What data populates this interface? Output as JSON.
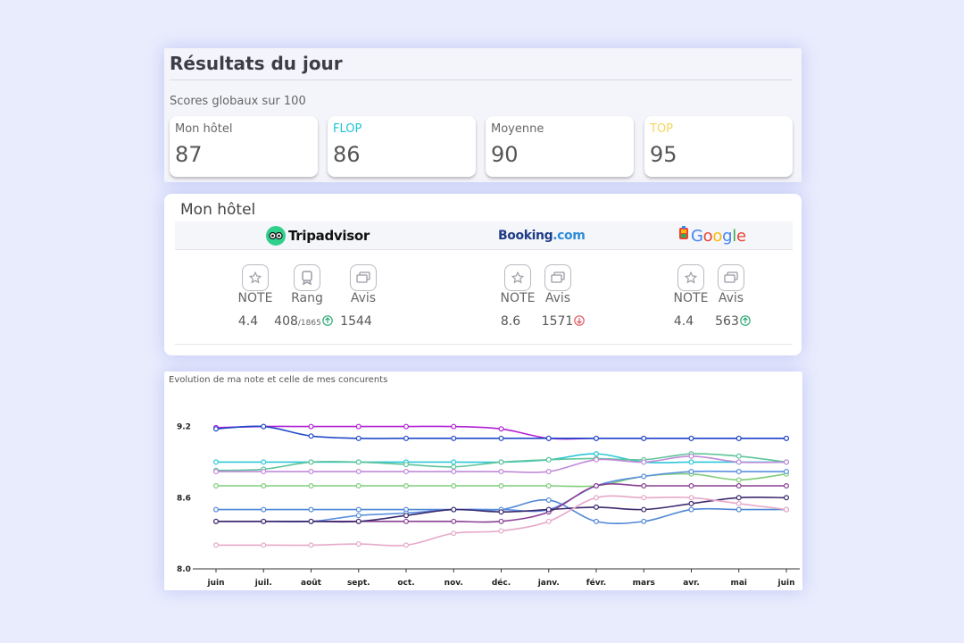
{
  "results": {
    "title": "Résultats du jour",
    "subtitle": "Scores globaux sur 100",
    "cards": [
      {
        "label": "Mon hôtel",
        "value": "87",
        "color": "#666666"
      },
      {
        "label": "FLOP",
        "value": "86",
        "color": "#1ec3d6"
      },
      {
        "label": "Moyenne",
        "value": "90",
        "color": "#666666"
      },
      {
        "label": "TOP",
        "value": "95",
        "color": "#f5d560"
      }
    ]
  },
  "hotel": {
    "title": "Mon hôtel",
    "platforms": {
      "tripadvisor": {
        "logo_text": "Tripadvisor",
        "labels": [
          "NOTE",
          "Rang",
          "Avis"
        ],
        "note": "4.4",
        "rank": "408",
        "rank_total": "/1865",
        "rank_trend": "up",
        "reviews": "1544"
      },
      "booking": {
        "logo_text_main": "Booking",
        "logo_text_dot": ".com",
        "labels": [
          "NOTE",
          "Avis"
        ],
        "note": "8.6",
        "reviews": "1571",
        "reviews_trend": "down"
      },
      "google": {
        "logo_text": "Google",
        "labels": [
          "NOTE",
          "Avis"
        ],
        "note": "4.4",
        "reviews": "563",
        "reviews_trend": "up"
      }
    },
    "colors": {
      "up": "#2aa876",
      "down": "#e05560"
    }
  },
  "chart_title": "Evolution de ma note et celle de mes concurents",
  "chart_data": {
    "type": "line",
    "x": [
      "juin",
      "juil.",
      "août",
      "sept.",
      "oct.",
      "nov.",
      "déc.",
      "janv.",
      "févr.",
      "mars",
      "avr.",
      "mai",
      "juin"
    ],
    "ylim": [
      8.0,
      9.4
    ],
    "yticks": [
      8.0,
      8.6,
      9.2
    ],
    "series": [
      {
        "color": "#b21fd4",
        "values": [
          9.19,
          9.2,
          9.2,
          9.2,
          9.2,
          9.2,
          9.18,
          9.1,
          9.1,
          9.1,
          9.1,
          9.1,
          9.1
        ]
      },
      {
        "color": "#1f49c8",
        "values": [
          9.18,
          9.2,
          9.12,
          9.1,
          9.1,
          9.1,
          9.1,
          9.1,
          9.1,
          9.1,
          9.1,
          9.1,
          9.1
        ]
      },
      {
        "color": "#2bc7d8",
        "values": [
          8.9,
          8.9,
          8.9,
          8.9,
          8.9,
          8.9,
          8.9,
          8.92,
          8.97,
          8.9,
          8.9,
          8.9,
          8.9
        ]
      },
      {
        "color": "#5ec49a",
        "values": [
          8.83,
          8.84,
          8.9,
          8.9,
          8.88,
          8.86,
          8.9,
          8.92,
          8.93,
          8.92,
          8.97,
          8.95,
          8.9
        ]
      },
      {
        "color": "#c08ad8",
        "values": [
          8.82,
          8.82,
          8.82,
          8.82,
          8.82,
          8.82,
          8.82,
          8.82,
          8.92,
          8.9,
          8.95,
          8.9,
          8.9
        ]
      },
      {
        "color": "#4f86d6",
        "values": [
          8.5,
          8.5,
          8.5,
          8.5,
          8.5,
          8.5,
          8.5,
          8.58,
          8.4,
          8.4,
          8.5,
          8.5,
          8.5
        ]
      },
      {
        "color": "#7fce7a",
        "values": [
          8.7,
          8.7,
          8.7,
          8.7,
          8.7,
          8.7,
          8.7,
          8.7,
          8.7,
          8.78,
          8.8,
          8.75,
          8.8
        ]
      },
      {
        "color": "#5a8fe0",
        "values": [
          8.4,
          8.4,
          8.4,
          8.45,
          8.47,
          8.5,
          8.5,
          8.5,
          8.7,
          8.78,
          8.82,
          8.82,
          8.82
        ]
      },
      {
        "color": "#8a3f94",
        "values": [
          8.4,
          8.4,
          8.4,
          8.4,
          8.4,
          8.4,
          8.4,
          8.48,
          8.7,
          8.7,
          8.7,
          8.7,
          8.7
        ]
      },
      {
        "color": "#3c2a6e",
        "values": [
          8.4,
          8.4,
          8.4,
          8.4,
          8.45,
          8.5,
          8.48,
          8.5,
          8.52,
          8.5,
          8.55,
          8.6,
          8.6
        ]
      },
      {
        "color": "#e6a8c8",
        "values": [
          8.2,
          8.2,
          8.2,
          8.21,
          8.2,
          8.3,
          8.32,
          8.4,
          8.6,
          8.6,
          8.6,
          8.55,
          8.5
        ]
      }
    ]
  }
}
